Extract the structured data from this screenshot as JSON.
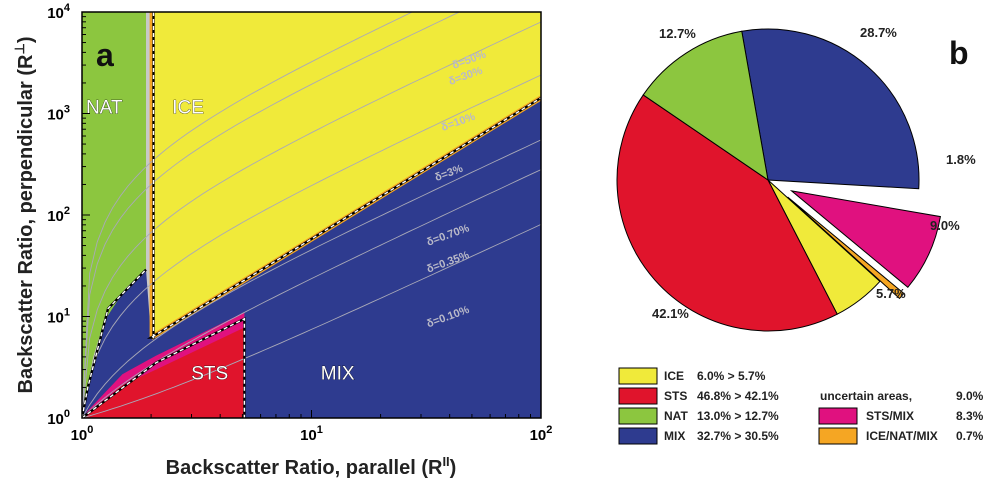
{
  "chart_data": [
    {
      "type": "area",
      "panel_label": "a",
      "xlabel": "Backscatter Ratio, parallel (R",
      "xlabel_sup": "II",
      "ylabel": "Backscatter Ratio, perpendicular (R",
      "ylabel_sup": "⊥",
      "x_scale": "log",
      "y_scale": "log",
      "xlim": [
        1,
        100
      ],
      "ylim": [
        1,
        10000
      ],
      "x_ticks": [
        {
          "base": "10",
          "exp": "0"
        },
        {
          "base": "10",
          "exp": "1"
        },
        {
          "base": "10",
          "exp": "2"
        }
      ],
      "y_ticks": [
        {
          "base": "10",
          "exp": "0"
        },
        {
          "base": "10",
          "exp": "1"
        },
        {
          "base": "10",
          "exp": "2"
        },
        {
          "base": "10",
          "exp": "3"
        },
        {
          "base": "10",
          "exp": "4"
        }
      ],
      "regions": [
        {
          "name": "NAT",
          "color": "#8cc63f",
          "label_at": [
            1.25,
            1000
          ]
        },
        {
          "name": "ICE",
          "color": "#f0ea3a",
          "label_at": [
            2.9,
            1000
          ]
        },
        {
          "name": "STS",
          "color": "#e0142c",
          "label_at": [
            3.6,
            2.4
          ]
        },
        {
          "name": "MIX",
          "color": "#2e3b8f",
          "label_at": [
            13,
            2.4
          ]
        }
      ],
      "uncertain_colors": {
        "STS/MIX": "#e0117f",
        "ICE/NAT/MIX": "#f5a623"
      },
      "delta_curves": [
        {
          "label": "δ=50%",
          "label_at": [
            58,
            3600
          ]
        },
        {
          "label": "δ=30%",
          "label_at": [
            56,
            2500
          ]
        },
        {
          "label": "δ=10%",
          "label_at": [
            52,
            880
          ]
        },
        {
          "label": "δ=3%",
          "label_at": [
            46,
            270
          ]
        },
        {
          "label": "δ=0.70%",
          "label_at": [
            49,
            70
          ]
        },
        {
          "label": "δ=0.35%",
          "label_at": [
            49,
            38
          ]
        },
        {
          "label": "δ=0.10%",
          "label_at": [
            49,
            11
          ]
        }
      ]
    },
    {
      "type": "pie",
      "panel_label": "b",
      "slices": [
        {
          "name": "MIX",
          "value": 28.7,
          "label": "28.7%",
          "color": "#2e3b8f"
        },
        {
          "name": "STS/MIX",
          "value": 8.3,
          "label": "9.0%",
          "color": "#e0117f",
          "exploded": true
        },
        {
          "name": "ICE/NAT/MIX",
          "value": 0.7,
          "label": "",
          "color": "#f5a623",
          "exploded": true
        },
        {
          "name": "ICE",
          "value": 5.7,
          "label": "5.7%",
          "color": "#f0ea3a"
        },
        {
          "name": "STS",
          "value": 42.1,
          "label": "42.1%",
          "color": "#e0142c"
        },
        {
          "name": "NAT",
          "value": 12.7,
          "label": "12.7%",
          "color": "#8cc63f"
        }
      ],
      "gap_label": "1.8%",
      "legend_left": [
        {
          "name": "ICE",
          "color": "#f0ea3a",
          "text": "6.0%   > 5.7%"
        },
        {
          "name": "STS",
          "color": "#e0142c",
          "text": "46.8% > 42.1%"
        },
        {
          "name": "NAT",
          "color": "#8cc63f",
          "text": "13.0% > 12.7%"
        },
        {
          "name": "MIX",
          "color": "#2e3b8f",
          "text": "32.7% > 30.5%"
        }
      ],
      "legend_right_header": {
        "label": "uncertain areas,",
        "value": "9.0%"
      },
      "legend_right": [
        {
          "name": "STS/MIX",
          "color": "#e0117f",
          "value": "8.3%"
        },
        {
          "name": "ICE/NAT/MIX",
          "color": "#f5a623",
          "value": "0.7%"
        }
      ]
    }
  ]
}
